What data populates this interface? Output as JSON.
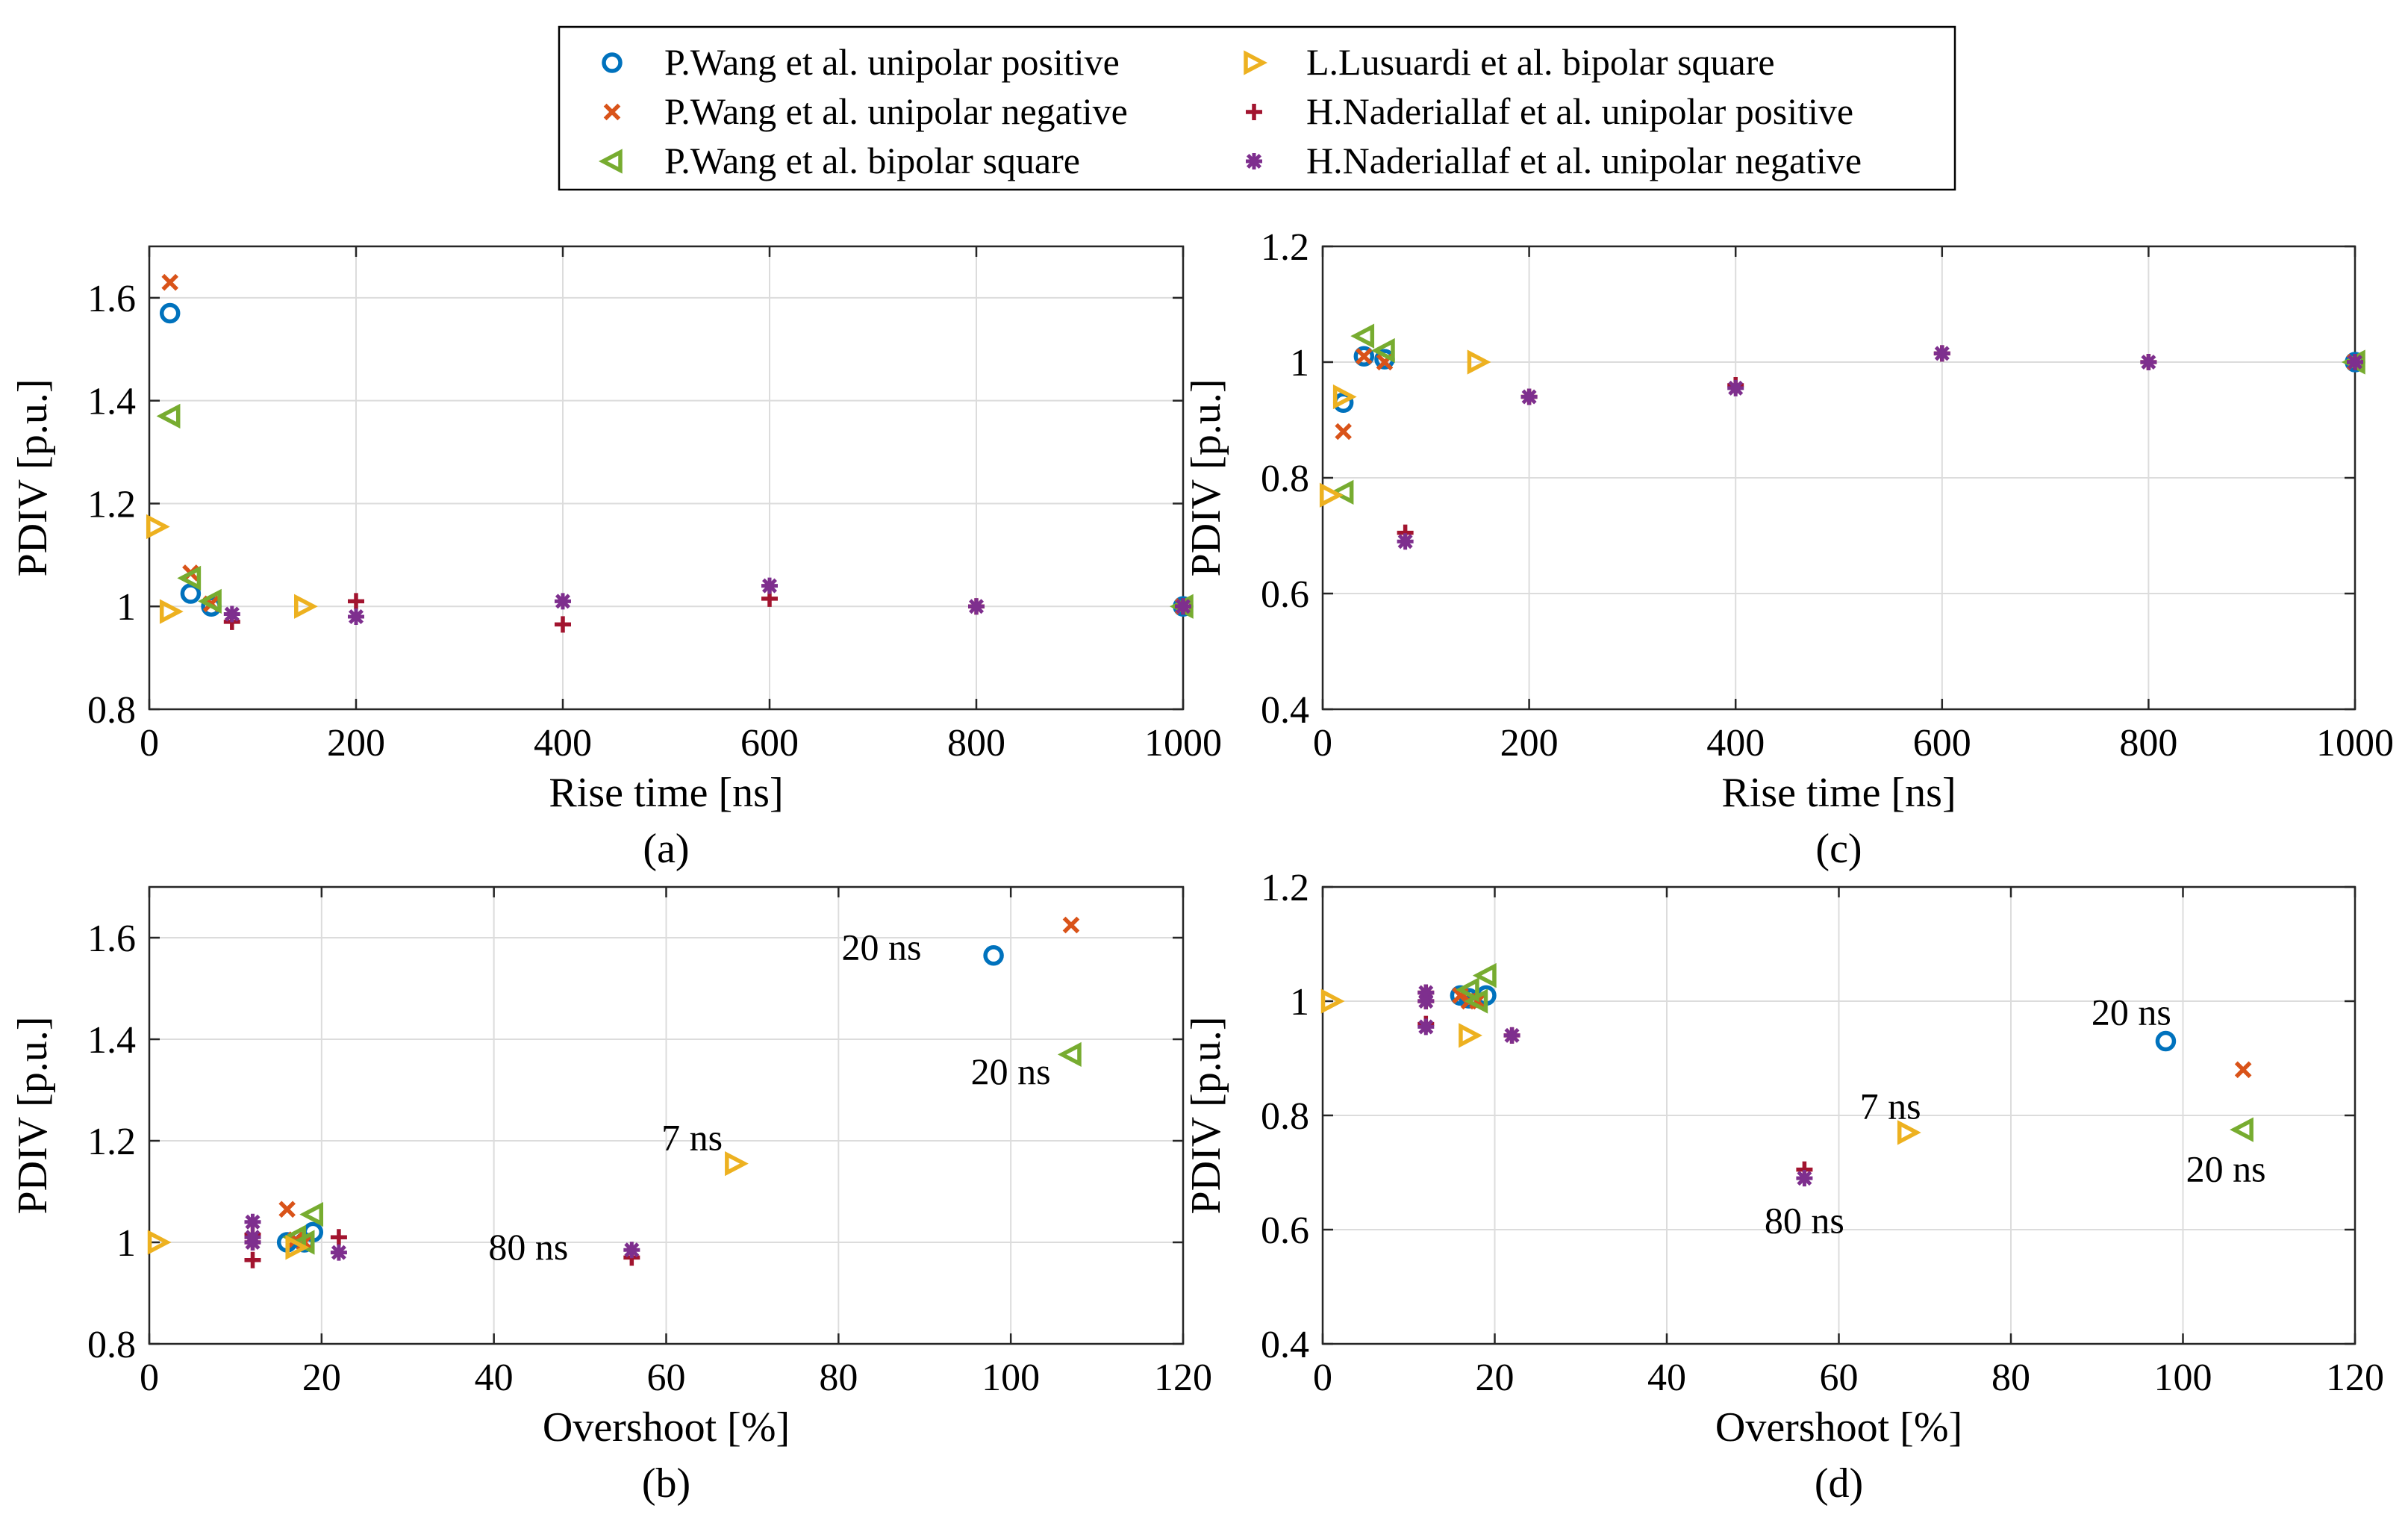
{
  "legend": {
    "entries": [
      {
        "key": "wang_pos",
        "label": "P.Wang et al. unipolar positive",
        "marker": "circle",
        "color": "#0072BD"
      },
      {
        "key": "wang_neg",
        "label": "P.Wang et al. unipolar negative",
        "marker": "x",
        "color": "#D95319"
      },
      {
        "key": "wang_bip",
        "label": "P.Wang et al. bipolar square",
        "marker": "tri-left",
        "color": "#77AC30"
      },
      {
        "key": "lus_bip",
        "label": "L.Lusuardi et al. bipolar square",
        "marker": "tri-right",
        "color": "#EDB120"
      },
      {
        "key": "nad_pos",
        "label": "H.Naderiallaf et al. unipolar positive",
        "marker": "plus",
        "color": "#A2142F"
      },
      {
        "key": "nad_neg",
        "label": "H.Naderiallaf et al. unipolar negative",
        "marker": "asterisk",
        "color": "#7E2F8E"
      }
    ]
  },
  "chart_data": [
    {
      "id": "a",
      "type": "scatter",
      "panel_label": "(a)",
      "xlabel": "Rise time [ns]",
      "ylabel": "PDIV [p.u.]",
      "xlim": [
        0,
        1000
      ],
      "ylim": [
        0.8,
        1.7
      ],
      "xticks": [
        0,
        200,
        400,
        600,
        800,
        1000
      ],
      "yticks": [
        0.8,
        1,
        1.2,
        1.4,
        1.6
      ],
      "xtick_labels": [
        "0",
        "200",
        "400",
        "600",
        "800",
        "1000"
      ],
      "ytick_labels": [
        "0.8",
        "1",
        "1.2",
        "1.4",
        "1.6"
      ],
      "grid": true,
      "series": [
        {
          "key": "wang_pos",
          "points": [
            [
              20,
              1.57
            ],
            [
              40,
              1.025
            ],
            [
              60,
              1.0
            ],
            [
              1000,
              1.0
            ]
          ]
        },
        {
          "key": "wang_neg",
          "points": [
            [
              20,
              1.63
            ],
            [
              40,
              1.065
            ],
            [
              60,
              1.005
            ],
            [
              1000,
              1.0
            ]
          ]
        },
        {
          "key": "wang_bip",
          "points": [
            [
              20,
              1.37
            ],
            [
              40,
              1.055
            ],
            [
              60,
              1.01
            ],
            [
              1000,
              1.0
            ]
          ]
        },
        {
          "key": "lus_bip",
          "points": [
            [
              7,
              1.155
            ],
            [
              20,
              0.99
            ],
            [
              150,
              1.0
            ]
          ]
        },
        {
          "key": "nad_pos",
          "points": [
            [
              80,
              0.97
            ],
            [
              200,
              1.01
            ],
            [
              400,
              0.965
            ],
            [
              600,
              1.015
            ],
            [
              800,
              1.0
            ],
            [
              1000,
              1.0
            ]
          ]
        },
        {
          "key": "nad_neg",
          "points": [
            [
              80,
              0.985
            ],
            [
              200,
              0.98
            ],
            [
              400,
              1.01
            ],
            [
              600,
              1.04
            ],
            [
              800,
              1.0
            ],
            [
              1000,
              1.0
            ]
          ]
        }
      ],
      "annotations": []
    },
    {
      "id": "c",
      "type": "scatter",
      "panel_label": "(c)",
      "xlabel": "Rise time [ns]",
      "ylabel": "PDIV [p.u.]",
      "xlim": [
        0,
        1000
      ],
      "ylim": [
        0.4,
        1.2
      ],
      "xticks": [
        0,
        200,
        400,
        600,
        800,
        1000
      ],
      "yticks": [
        0.4,
        0.6,
        0.8,
        1,
        1.2
      ],
      "xtick_labels": [
        "0",
        "200",
        "400",
        "600",
        "800",
        "1000"
      ],
      "ytick_labels": [
        "0.4",
        "0.6",
        "0.8",
        "1",
        "1.2"
      ],
      "grid": true,
      "series": [
        {
          "key": "wang_pos",
          "points": [
            [
              20,
              0.93
            ],
            [
              40,
              1.01
            ],
            [
              60,
              1.005
            ],
            [
              1000,
              1.0
            ]
          ]
        },
        {
          "key": "wang_neg",
          "points": [
            [
              20,
              0.88
            ],
            [
              40,
              1.01
            ],
            [
              60,
              1.0
            ],
            [
              1000,
              1.0
            ]
          ]
        },
        {
          "key": "wang_bip",
          "points": [
            [
              20,
              0.775
            ],
            [
              40,
              1.045
            ],
            [
              60,
              1.02
            ],
            [
              1000,
              1.0
            ]
          ]
        },
        {
          "key": "lus_bip",
          "points": [
            [
              7,
              0.77
            ],
            [
              20,
              0.94
            ],
            [
              150,
              1.0
            ]
          ]
        },
        {
          "key": "nad_pos",
          "points": [
            [
              80,
              0.705
            ],
            [
              200,
              0.94
            ],
            [
              400,
              0.96
            ],
            [
              600,
              1.015
            ],
            [
              800,
              1.0
            ],
            [
              1000,
              1.0
            ]
          ]
        },
        {
          "key": "nad_neg",
          "points": [
            [
              80,
              0.69
            ],
            [
              200,
              0.94
            ],
            [
              400,
              0.955
            ],
            [
              600,
              1.015
            ],
            [
              800,
              1.0
            ],
            [
              1000,
              1.0
            ]
          ]
        }
      ],
      "annotations": []
    },
    {
      "id": "b",
      "type": "scatter",
      "panel_label": "(b)",
      "xlabel": "Overshoot [%]",
      "ylabel": "PDIV [p.u.]",
      "xlim": [
        0,
        120
      ],
      "ylim": [
        0.8,
        1.7
      ],
      "xticks": [
        0,
        20,
        40,
        60,
        80,
        100,
        120
      ],
      "yticks": [
        0.8,
        1,
        1.2,
        1.4,
        1.6
      ],
      "xtick_labels": [
        "0",
        "20",
        "40",
        "60",
        "80",
        "100",
        "120"
      ],
      "ytick_labels": [
        "0.8",
        "1",
        "1.2",
        "1.4",
        "1.6"
      ],
      "grid": true,
      "series": [
        {
          "key": "wang_pos",
          "points": [
            [
              98,
              1.565
            ],
            [
              19,
              1.02
            ],
            [
              16,
              1.0
            ],
            [
              18,
              1.0
            ]
          ]
        },
        {
          "key": "wang_neg",
          "points": [
            [
              107,
              1.625
            ],
            [
              16,
              1.065
            ],
            [
              17,
              1.005
            ],
            [
              18,
              1.0
            ]
          ]
        },
        {
          "key": "wang_bip",
          "points": [
            [
              107,
              1.37
            ],
            [
              19,
              1.055
            ],
            [
              17,
              1.01
            ],
            [
              18,
              1.0
            ]
          ]
        },
        {
          "key": "lus_bip",
          "points": [
            [
              68,
              1.155
            ],
            [
              17,
              0.99
            ],
            [
              1,
              1.0
            ]
          ]
        },
        {
          "key": "nad_pos",
          "points": [
            [
              56,
              0.97
            ],
            [
              22,
              1.01
            ],
            [
              12,
              0.965
            ],
            [
              12,
              1.015
            ],
            [
              12,
              1.0
            ]
          ]
        },
        {
          "key": "nad_neg",
          "points": [
            [
              56,
              0.985
            ],
            [
              22,
              0.98
            ],
            [
              12,
              1.01
            ],
            [
              12,
              1.04
            ],
            [
              12,
              1.0
            ]
          ]
        }
      ],
      "annotations": [
        {
          "text": "20 ns",
          "x": 98,
          "y": 1.565,
          "dx": -13,
          "dy": 0.015
        },
        {
          "text": "20 ns",
          "x": 107,
          "y": 1.37,
          "dx": -7,
          "dy": -0.035
        },
        {
          "text": "7 ns",
          "x": 68,
          "y": 1.155,
          "dx": -5,
          "dy": 0.05
        },
        {
          "text": "80 ns",
          "x": 56,
          "y": 0.985,
          "dx": -12,
          "dy": 0.005
        }
      ]
    },
    {
      "id": "d",
      "type": "scatter",
      "panel_label": "(d)",
      "xlabel": "Overshoot [%]",
      "ylabel": "PDIV [p.u.]",
      "xlim": [
        0,
        120
      ],
      "ylim": [
        0.4,
        1.2
      ],
      "xticks": [
        0,
        20,
        40,
        60,
        80,
        100,
        120
      ],
      "yticks": [
        0.4,
        0.6,
        0.8,
        1,
        1.2
      ],
      "xtick_labels": [
        "0",
        "20",
        "40",
        "60",
        "80",
        "100",
        "120"
      ],
      "ytick_labels": [
        "0.4",
        "0.6",
        "0.8",
        "1",
        "1.2"
      ],
      "grid": true,
      "series": [
        {
          "key": "wang_pos",
          "points": [
            [
              98,
              0.93
            ],
            [
              19,
              1.01
            ],
            [
              16,
              1.01
            ],
            [
              17,
              1.005
            ]
          ]
        },
        {
          "key": "wang_neg",
          "points": [
            [
              107,
              0.88
            ],
            [
              16,
              1.01
            ],
            [
              17,
              1.0
            ],
            [
              18,
              1.0
            ]
          ]
        },
        {
          "key": "wang_bip",
          "points": [
            [
              107,
              0.775
            ],
            [
              19,
              1.045
            ],
            [
              17,
              1.02
            ],
            [
              18,
              1.0
            ]
          ]
        },
        {
          "key": "lus_bip",
          "points": [
            [
              68,
              0.77
            ],
            [
              17,
              0.94
            ],
            [
              1,
              1.0
            ]
          ]
        },
        {
          "key": "nad_pos",
          "points": [
            [
              56,
              0.705
            ],
            [
              22,
              0.94
            ],
            [
              12,
              0.96
            ],
            [
              12,
              1.015
            ],
            [
              12,
              1.0
            ]
          ]
        },
        {
          "key": "nad_neg",
          "points": [
            [
              56,
              0.69
            ],
            [
              22,
              0.94
            ],
            [
              12,
              0.955
            ],
            [
              12,
              1.015
            ],
            [
              12,
              1.0
            ]
          ]
        }
      ],
      "annotations": [
        {
          "text": "20 ns",
          "x": 98,
          "y": 0.93,
          "dx": -4,
          "dy": 0.05
        },
        {
          "text": "20 ns",
          "x": 107,
          "y": 0.775,
          "dx": -2,
          "dy": -0.07
        },
        {
          "text": "7 ns",
          "x": 68,
          "y": 0.77,
          "dx": -2,
          "dy": 0.045
        },
        {
          "text": "80 ns",
          "x": 56,
          "y": 0.69,
          "dx": 0,
          "dy": -0.075
        }
      ]
    }
  ]
}
